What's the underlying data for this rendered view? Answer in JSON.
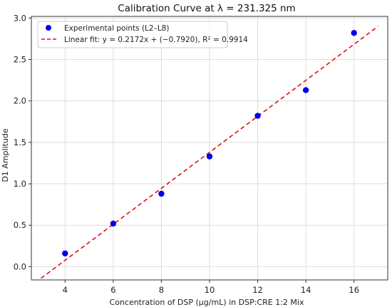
{
  "chart_data": {
    "type": "scatter",
    "title": "Calibration Curve at λ = 231.325 nm",
    "xlabel": "Concentration of DSP (μg/mL) in DSP:CRE 1:2 Mix",
    "ylabel": "D1 Amplitude",
    "xlim": [
      2.6,
      17.4
    ],
    "ylim": [
      -0.16,
      3.02
    ],
    "x_ticks": [
      4,
      6,
      8,
      10,
      12,
      14,
      16
    ],
    "y_ticks": [
      0.0,
      0.5,
      1.0,
      1.5,
      2.0,
      2.5,
      3.0
    ],
    "x_tick_labels": [
      "4",
      "6",
      "8",
      "10",
      "12",
      "14",
      "16"
    ],
    "y_tick_labels": [
      "0.0",
      "0.5",
      "1.0",
      "1.5",
      "2.0",
      "2.5",
      "3.0"
    ],
    "grid": true,
    "legend_position": "top-left",
    "series": [
      {
        "name": "Experimental points (L2–L8)",
        "kind": "scatter",
        "color": "#0000ee",
        "x": [
          4,
          6,
          8,
          10,
          12,
          14,
          16
        ],
        "y": [
          0.16,
          0.52,
          0.88,
          1.33,
          1.82,
          2.13,
          2.82
        ]
      },
      {
        "name": "Linear fit: y = 0.2172x + (−0.7920), R² = 0.9914",
        "kind": "line",
        "style": "dashed",
        "color": "#dd1111",
        "slope": 0.2172,
        "intercept": -0.792,
        "x_range": [
          3,
          17
        ]
      }
    ]
  }
}
